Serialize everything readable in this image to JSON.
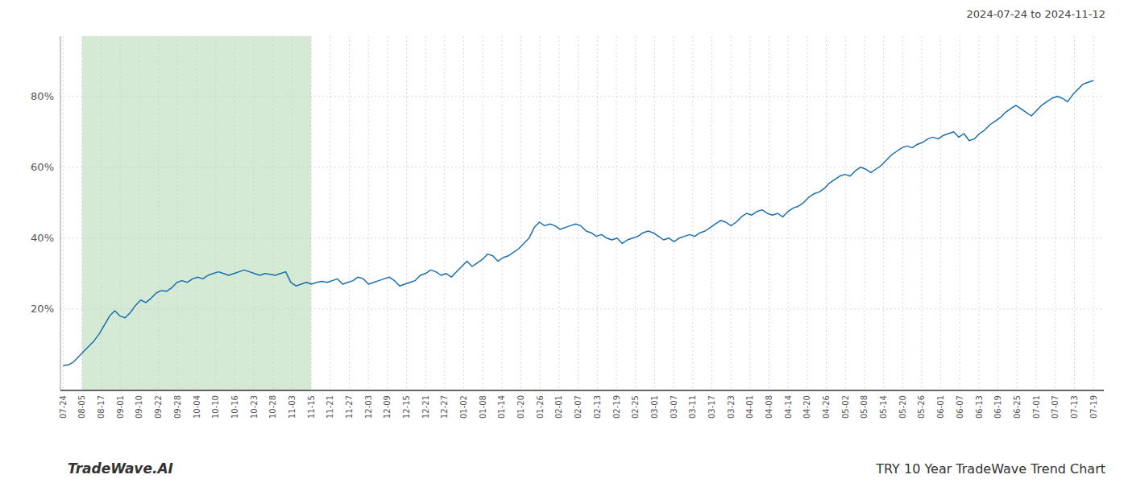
{
  "chart_data": {
    "type": "line",
    "title": "TRY 10 Year TradeWave Trend Chart",
    "subtitle": "2024-07-24 to 2024-11-12",
    "annotations": [
      "TradeWave.AI"
    ],
    "color": "#1a6faf",
    "grid": true,
    "xlim": [
      -0.5,
      201
    ],
    "xticks": [
      {
        "value": 0,
        "label": "07-24"
      },
      {
        "value": 3.685185185185185,
        "label": "08-05"
      },
      {
        "value": 7.37037037037037,
        "label": "08-17"
      },
      {
        "value": 11.055555555555555,
        "label": "09-01"
      },
      {
        "value": 14.74074074074074,
        "label": "09-10"
      },
      {
        "value": 18.425925925925927,
        "label": "09-22"
      },
      {
        "value": 22.11111111111111,
        "label": "09-28"
      },
      {
        "value": 25.796296296296298,
        "label": "10-04"
      },
      {
        "value": 29.48148148148148,
        "label": "10-10"
      },
      {
        "value": 33.166666666666664,
        "label": "10-16"
      },
      {
        "value": 36.85185185185185,
        "label": "10-23"
      },
      {
        "value": 40.53703703703704,
        "label": "10-28"
      },
      {
        "value": 44.22222222222222,
        "label": "11-03"
      },
      {
        "value": 47.907407407407405,
        "label": "11-15"
      },
      {
        "value": 51.592592592592595,
        "label": "11-21"
      },
      {
        "value": 55.27777777777778,
        "label": "11-27"
      },
      {
        "value": 58.96296296296296,
        "label": "12-03"
      },
      {
        "value": 62.648148148148145,
        "label": "12-09"
      },
      {
        "value": 66.33333333333333,
        "label": "12-15"
      },
      {
        "value": 70.01851851851852,
        "label": "12-21"
      },
      {
        "value": 73.70370370370371,
        "label": "12-27"
      },
      {
        "value": 77.38888888888889,
        "label": "01-02"
      },
      {
        "value": 81.07407407407408,
        "label": "01-08"
      },
      {
        "value": 84.75925925925925,
        "label": "01-14"
      },
      {
        "value": 88.44444444444444,
        "label": "01-20"
      },
      {
        "value": 92.12962962962963,
        "label": "01-26"
      },
      {
        "value": 95.81481481481481,
        "label": "02-01"
      },
      {
        "value": 99.5,
        "label": "02-07"
      },
      {
        "value": 103.18518518518519,
        "label": "02-13"
      },
      {
        "value": 106.87037037037037,
        "label": "02-19"
      },
      {
        "value": 110.55555555555556,
        "label": "02-25"
      },
      {
        "value": 114.24074074074075,
        "label": "03-01"
      },
      {
        "value": 117.92592592592592,
        "label": "03-07"
      },
      {
        "value": 121.61111111111111,
        "label": "03-11"
      },
      {
        "value": 125.29629629629629,
        "label": "03-17"
      },
      {
        "value": 128.9814814814815,
        "label": "03-23"
      },
      {
        "value": 132.66666666666666,
        "label": "04-01"
      },
      {
        "value": 136.35185185185185,
        "label": "04-08"
      },
      {
        "value": 140.03703703703704,
        "label": "04-14"
      },
      {
        "value": 143.72222222222223,
        "label": "04-20"
      },
      {
        "value": 147.4074074074074,
        "label": "04-26"
      },
      {
        "value": 151.09259259259258,
        "label": "05-02"
      },
      {
        "value": 154.77777777777777,
        "label": "05-08"
      },
      {
        "value": 158.46296296296296,
        "label": "05-14"
      },
      {
        "value": 162.14814814814815,
        "label": "05-20"
      },
      {
        "value": 165.83333333333334,
        "label": "05-26"
      },
      {
        "value": 169.5185185185185,
        "label": "06-01"
      },
      {
        "value": 173.2037037037037,
        "label": "06-07"
      },
      {
        "value": 176.88888888888889,
        "label": "06-13"
      },
      {
        "value": 180.57407407407408,
        "label": "06-19"
      },
      {
        "value": 184.25925925925927,
        "label": "06-25"
      },
      {
        "value": 187.94444444444446,
        "label": "07-01"
      },
      {
        "value": 191.62962962962962,
        "label": "07-07"
      },
      {
        "value": 195.3148148148148,
        "label": "07-13"
      },
      {
        "value": 199,
        "label": "07-19"
      }
    ],
    "ylim": [
      -3,
      97
    ],
    "yticks": [
      {
        "value": 20,
        "label": "20%"
      },
      {
        "value": 40,
        "label": "40%"
      },
      {
        "value": 60,
        "label": "60%"
      },
      {
        "value": 80,
        "label": "80%"
      }
    ],
    "highlight": {
      "start": "08-05",
      "end": "11-15",
      "color": "#d4ead4"
    },
    "values": [
      4.0,
      4.2,
      5.0,
      6.5,
      8.0,
      9.5,
      11.0,
      13.0,
      15.5,
      18.0,
      19.5,
      18.0,
      17.5,
      19.0,
      21.0,
      22.5,
      21.8,
      23.0,
      24.5,
      25.2,
      25.0,
      26.0,
      27.5,
      28.0,
      27.5,
      28.5,
      29.0,
      28.5,
      29.5,
      30.0,
      30.5,
      30.0,
      29.5,
      30.0,
      30.5,
      31.0,
      30.5,
      30.0,
      29.5,
      30.0,
      29.8,
      29.5,
      30.0,
      30.5,
      27.5,
      26.5,
      27.0,
      27.5,
      27.0,
      27.5,
      27.8,
      27.5,
      28.0,
      28.5,
      27.0,
      27.5,
      28.0,
      29.0,
      28.5,
      27.0,
      27.5,
      28.0,
      28.5,
      29.0,
      28.0,
      26.5,
      27.0,
      27.5,
      28.0,
      29.5,
      30.0,
      31.0,
      30.5,
      29.5,
      30.0,
      29.0,
      30.5,
      32.0,
      33.5,
      32.0,
      33.0,
      34.0,
      35.5,
      35.0,
      33.5,
      34.5,
      35.0,
      36.0,
      37.0,
      38.5,
      40.0,
      43.0,
      44.5,
      43.5,
      44.0,
      43.5,
      42.5,
      43.0,
      43.5,
      44.0,
      43.5,
      42.0,
      41.5,
      40.5,
      41.0,
      40.0,
      39.5,
      40.0,
      38.5,
      39.5,
      40.0,
      40.5,
      41.5,
      42.0,
      41.5,
      40.5,
      39.5,
      40.0,
      39.0,
      40.0,
      40.5,
      41.0,
      40.5,
      41.5,
      42.0,
      43.0,
      44.0,
      45.0,
      44.5,
      43.5,
      44.5,
      46.0,
      47.0,
      46.5,
      47.5,
      48.0,
      47.0,
      46.5,
      47.0,
      46.0,
      47.5,
      48.5,
      49.0,
      50.0,
      51.5,
      52.5,
      53.0,
      54.0,
      55.5,
      56.5,
      57.5,
      58.0,
      57.5,
      59.0,
      60.0,
      59.5,
      58.5,
      59.5,
      60.5,
      62.0,
      63.5,
      64.5,
      65.5,
      66.0,
      65.5,
      66.5,
      67.0,
      68.0,
      68.5,
      68.0,
      69.0,
      69.5,
      70.0,
      68.5,
      69.5,
      67.5,
      68.0,
      69.5,
      70.5,
      72.0,
      73.0,
      74.0,
      75.5,
      76.5,
      77.5,
      76.5,
      75.5,
      74.5,
      76.0,
      77.5,
      78.5,
      79.5,
      80.0,
      79.5,
      78.5,
      80.5,
      82.0,
      83.5,
      84.0,
      84.5
    ]
  }
}
